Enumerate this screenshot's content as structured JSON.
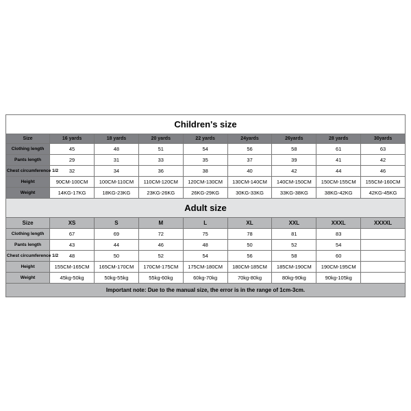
{
  "children": {
    "title": "Children's size",
    "headers": [
      "Size",
      "16 yards",
      "18 yards",
      "20 yards",
      "22 yards",
      "24yards",
      "26yards",
      "28 yards",
      "30yards"
    ],
    "rows": [
      {
        "label": "Clothing length",
        "cells": [
          "45",
          "48",
          "51",
          "54",
          "56",
          "58",
          "61",
          "63"
        ]
      },
      {
        "label": "Pants length",
        "cells": [
          "29",
          "31",
          "33",
          "35",
          "37",
          "39",
          "41",
          "42"
        ]
      },
      {
        "label": "Chest circumference 1/2",
        "cells": [
          "32",
          "34",
          "36",
          "38",
          "40",
          "42",
          "44",
          "46"
        ]
      },
      {
        "label": "Height",
        "cells": [
          "90CM-100CM",
          "100CM-110CM",
          "110CM-120CM",
          "120CM-130CM",
          "130CM-140CM",
          "140CM-150CM",
          "150CM-155CM",
          "155CM-160CM"
        ]
      },
      {
        "label": "Weight",
        "cells": [
          "14KG-17KG",
          "18KG-23KG",
          "23KG-26KG",
          "26KG-29KG",
          "30KG-33KG",
          "33KG-38KG",
          "38KG-42KG",
          "42KG-45KG"
        ]
      }
    ]
  },
  "adult": {
    "title": "Adult size",
    "headers": [
      "Size",
      "XS",
      "S",
      "M",
      "L",
      "XL",
      "XXL",
      "XXXL",
      "XXXXL"
    ],
    "rows": [
      {
        "label": "Clothing length",
        "cells": [
          "67",
          "69",
          "72",
          "75",
          "78",
          "81",
          "83",
          ""
        ]
      },
      {
        "label": "Pants length",
        "cells": [
          "43",
          "44",
          "46",
          "48",
          "50",
          "52",
          "54",
          ""
        ]
      },
      {
        "label": "Chest circumference 1/2",
        "cells": [
          "48",
          "50",
          "52",
          "54",
          "56",
          "58",
          "60",
          ""
        ]
      },
      {
        "label": "Height",
        "cells": [
          "155CM-165CM",
          "165CM-170CM",
          "170CM-175CM",
          "175CM-180CM",
          "180CM-185CM",
          "185CM-190CM",
          "190CM-195CM",
          ""
        ]
      },
      {
        "label": "Weight",
        "cells": [
          "45kg-50kg",
          "50kg-55kg",
          "55kg-60kg",
          "60kg-70kg",
          "70kg-80kg",
          "80kg-90kg",
          "90kg-105kg",
          ""
        ]
      }
    ]
  },
  "note": "Important note: Due to the manual size, the error is in the range of 1cm-3cm."
}
